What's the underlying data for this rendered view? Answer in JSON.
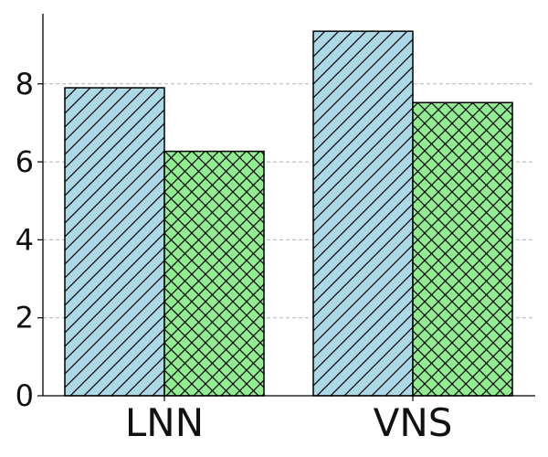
{
  "chart_data": {
    "type": "bar",
    "categories": [
      "LNN",
      "VNS"
    ],
    "series": [
      {
        "values": [
          7.9,
          9.35
        ],
        "color": "#ADD8E6",
        "hatch": "diagonal"
      },
      {
        "values": [
          6.27,
          7.52
        ],
        "color": "#90EE90",
        "hatch": "crosshatch"
      }
    ],
    "ylim": [
      0,
      9.8
    ],
    "yticks": [
      "0",
      "2",
      "4",
      "6",
      "8"
    ],
    "grid": "y-dashed",
    "legend": "none"
  }
}
